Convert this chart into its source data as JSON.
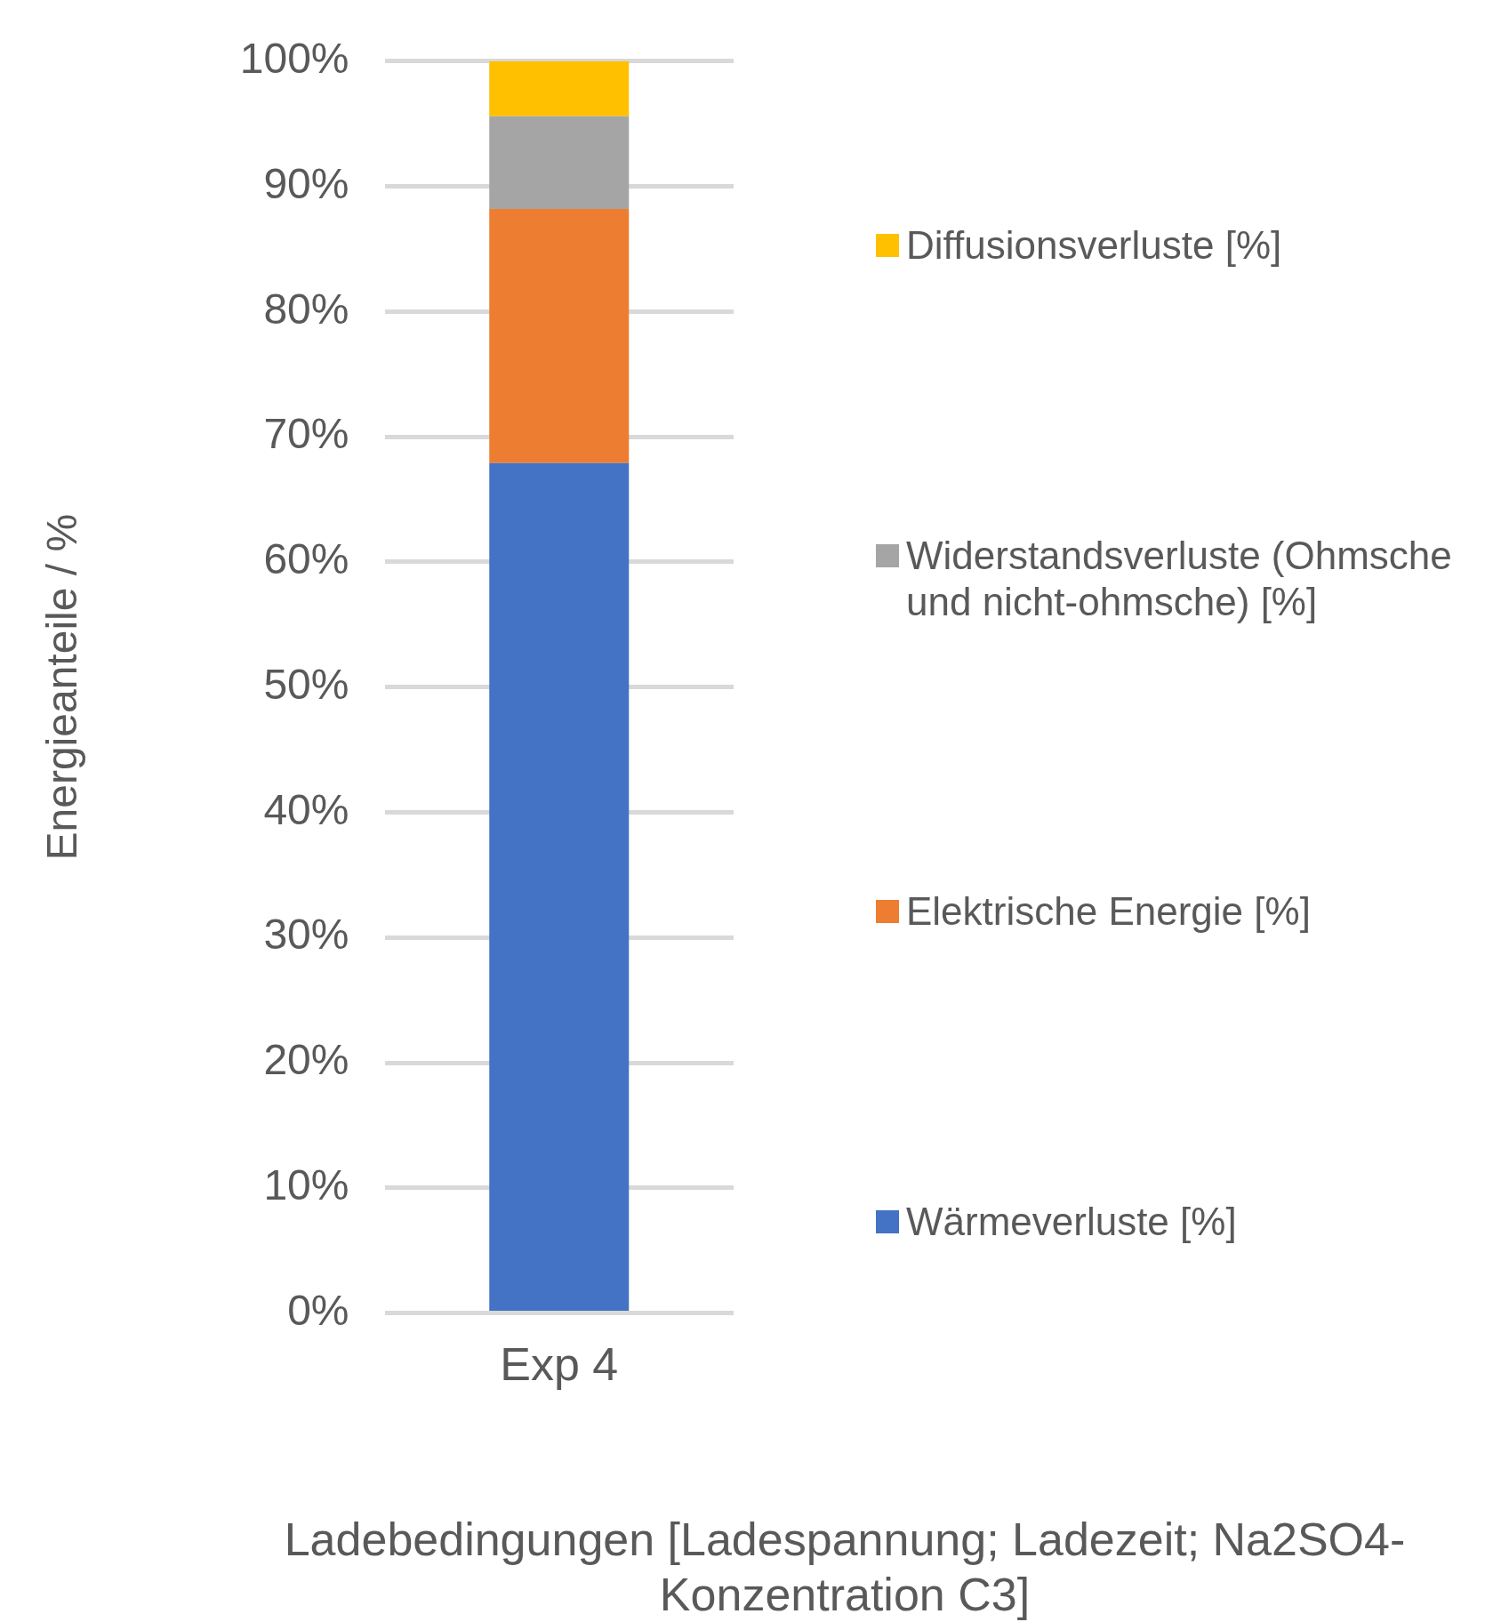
{
  "chart_data": {
    "type": "bar",
    "stacked": true,
    "categories": [
      "Exp 4"
    ],
    "series": [
      {
        "name": "Wärmeverluste [%]",
        "color": "#4472c4",
        "values": [
          67.9
        ]
      },
      {
        "name": "Elektrische Energie [%]",
        "color": "#ed7d31",
        "values": [
          20.3
        ]
      },
      {
        "name": "Widerstandsverluste (Ohmsche und nicht-ohmsche) [%]",
        "color": "#a5a5a5",
        "values": [
          7.4
        ]
      },
      {
        "name": "Diffusionsverluste [%]",
        "color": "#ffc000",
        "values": [
          4.4
        ]
      }
    ],
    "ylabel": "Energieanteile / %",
    "xlabel": "Ladebedingungen [Ladespannung; Ladezeit; Na2SO4-Konzentration C3]",
    "ylim": [
      0,
      100
    ],
    "yticks": [
      {
        "value": 0,
        "label": "0%"
      },
      {
        "value": 10,
        "label": "10%"
      },
      {
        "value": 20,
        "label": "20%"
      },
      {
        "value": 30,
        "label": "30%"
      },
      {
        "value": 40,
        "label": "40%"
      },
      {
        "value": 50,
        "label": "50%"
      },
      {
        "value": 60,
        "label": "60%"
      },
      {
        "value": 70,
        "label": "70%"
      },
      {
        "value": 80,
        "label": "80%"
      },
      {
        "value": 90,
        "label": "90%"
      },
      {
        "value": 100,
        "label": "100%"
      }
    ],
    "grid": "y",
    "legend": "right"
  }
}
